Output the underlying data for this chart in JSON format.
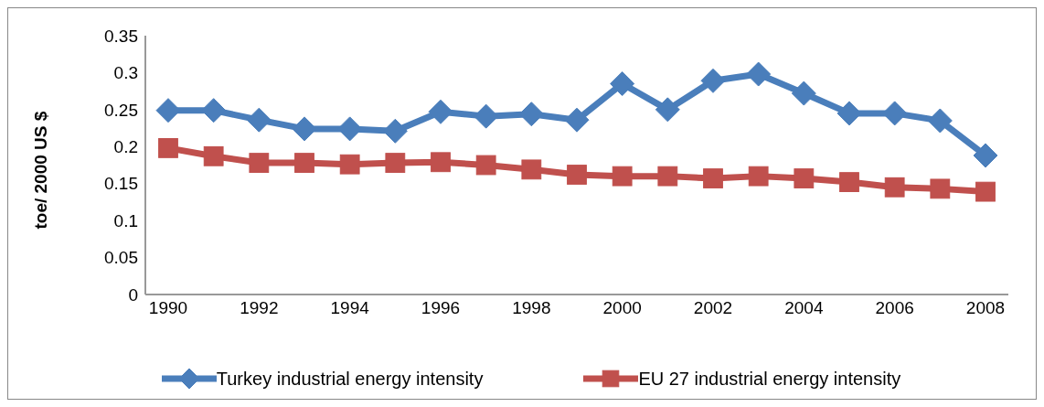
{
  "chart_data": {
    "type": "line",
    "ylabel": "toe/ 2000 US $",
    "categories": [
      "1990",
      null,
      "1992",
      null,
      "1994",
      null,
      "1996",
      null,
      "1998",
      null,
      "2000",
      null,
      "2002",
      null,
      "2004",
      null,
      "2006",
      null,
      "2008"
    ],
    "series": [
      {
        "name": "Turkey industrial energy intensity",
        "color": "#4a7ebb",
        "marker": "diamond",
        "values": [
          0.249,
          0.249,
          0.236,
          0.224,
          0.224,
          0.221,
          0.247,
          0.241,
          0.244,
          0.236,
          0.285,
          0.25,
          0.289,
          0.298,
          0.272,
          0.245,
          0.245,
          0.235,
          0.188
        ]
      },
      {
        "name": "EU 27 industrial energy intensity",
        "color": "#c0504d",
        "marker": "square",
        "values": [
          0.198,
          0.187,
          0.178,
          0.178,
          0.176,
          0.178,
          0.179,
          0.175,
          0.169,
          0.162,
          0.16,
          0.16,
          0.157,
          0.16,
          0.157,
          0.152,
          0.145,
          0.143,
          0.139
        ]
      }
    ],
    "ylim": [
      0,
      0.35
    ],
    "yticks": [
      0,
      0.05,
      0.1,
      0.15,
      0.2,
      0.25,
      0.3,
      0.35
    ],
    "grid": false,
    "legend": "bottom",
    "line_style": "solid"
  }
}
